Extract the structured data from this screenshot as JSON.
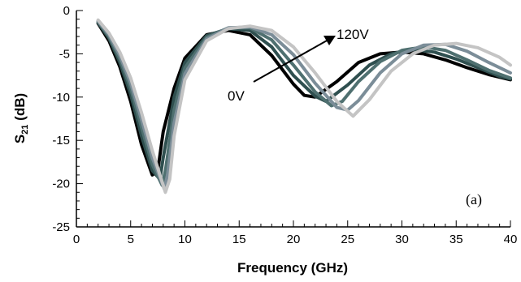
{
  "chart_data": {
    "type": "line",
    "xlabel": "Frequency (GHz)",
    "ylabel_main": "S",
    "ylabel_sub": "21",
    "ylabel_unit": " (dB)",
    "xlim": [
      0,
      40
    ],
    "ylim": [
      -25,
      0
    ],
    "xticks": [
      0,
      5,
      10,
      15,
      20,
      25,
      30,
      35,
      40
    ],
    "yticks": [
      0,
      -5,
      -10,
      -15,
      -20,
      -25
    ],
    "x_minor_step": 1,
    "y_minor_step": 1,
    "grid": false,
    "panel_label": "(a)",
    "annotations": {
      "start_label": "0V",
      "end_label": "120V"
    },
    "series": [
      {
        "color": "#000000",
        "x": [
          2,
          3,
          4,
          5,
          6,
          7,
          7.5,
          8,
          9,
          10,
          12,
          14,
          16,
          18,
          20,
          21,
          22,
          24,
          26,
          28,
          30,
          32,
          34,
          36,
          38,
          40
        ],
        "y": [
          -1.5,
          -3.5,
          -6.5,
          -10.5,
          -15.5,
          -19,
          -18.5,
          -14,
          -9,
          -5.5,
          -2.8,
          -2.3,
          -2.8,
          -5.2,
          -8.5,
          -9.8,
          -10,
          -8.2,
          -6,
          -5,
          -4.8,
          -5,
          -5.7,
          -6.6,
          -7.4,
          -8
        ]
      },
      {
        "color": "#2f4f4f",
        "x": [
          2,
          3,
          4,
          5,
          6,
          7,
          7.7,
          8,
          9,
          10,
          12,
          14,
          16,
          18,
          20,
          22,
          23,
          25,
          27,
          29,
          31,
          33,
          35,
          37,
          39,
          40
        ],
        "y": [
          -1.4,
          -3.2,
          -6,
          -9.7,
          -14.5,
          -18.5,
          -19.5,
          -17,
          -10,
          -6,
          -2.9,
          -2.1,
          -2.3,
          -4.2,
          -7.5,
          -9.9,
          -10.5,
          -8.6,
          -6.3,
          -5,
          -4.5,
          -4.8,
          -5.6,
          -6.6,
          -7.6,
          -7.9
        ]
      },
      {
        "color": "#4f7070",
        "x": [
          2,
          3,
          4,
          5,
          6,
          7,
          7.9,
          8.2,
          9,
          10,
          12,
          14,
          16,
          18,
          20,
          22,
          23.5,
          24.5,
          26,
          28,
          30,
          32,
          34,
          36,
          38,
          40
        ],
        "y": [
          -1.3,
          -3,
          -5.6,
          -9,
          -13.5,
          -17.8,
          -20.2,
          -18.5,
          -11.5,
          -6.6,
          -3.1,
          -2,
          -2,
          -3.4,
          -6.3,
          -9.4,
          -11,
          -10.5,
          -8.2,
          -5.9,
          -4.6,
          -4.2,
          -4.6,
          -5.7,
          -6.9,
          -7.8
        ]
      },
      {
        "color": "#7b8d98",
        "x": [
          2,
          3,
          4,
          5,
          6,
          7,
          8.1,
          8.4,
          9,
          10,
          12,
          14,
          16,
          18,
          20,
          22,
          24,
          25,
          26,
          28,
          30,
          32,
          34,
          36,
          38,
          40
        ],
        "y": [
          -1.2,
          -2.8,
          -5.2,
          -8.4,
          -12.6,
          -17,
          -20.6,
          -19,
          -13,
          -7.3,
          -3.3,
          -2,
          -1.9,
          -2.8,
          -5.1,
          -8.4,
          -11.2,
          -11.5,
          -10.4,
          -7.2,
          -5,
          -4,
          -3.9,
          -4.7,
          -6,
          -7.2
        ]
      },
      {
        "color": "#c4c4c4",
        "x": [
          2,
          3,
          4,
          5,
          6,
          7,
          8.2,
          8.6,
          9,
          10,
          12,
          14,
          16,
          18,
          20,
          22,
          24,
          25.5,
          27,
          29,
          31,
          33,
          35,
          37,
          39,
          40
        ],
        "y": [
          -1.1,
          -2.6,
          -4.8,
          -7.8,
          -11.8,
          -16.2,
          -21,
          -19.5,
          -14.5,
          -8,
          -3.5,
          -2.1,
          -1.8,
          -2.3,
          -4.2,
          -7.2,
          -10.5,
          -12.2,
          -10.3,
          -7,
          -5,
          -4,
          -3.8,
          -4.3,
          -5.4,
          -6.3
        ]
      }
    ]
  }
}
